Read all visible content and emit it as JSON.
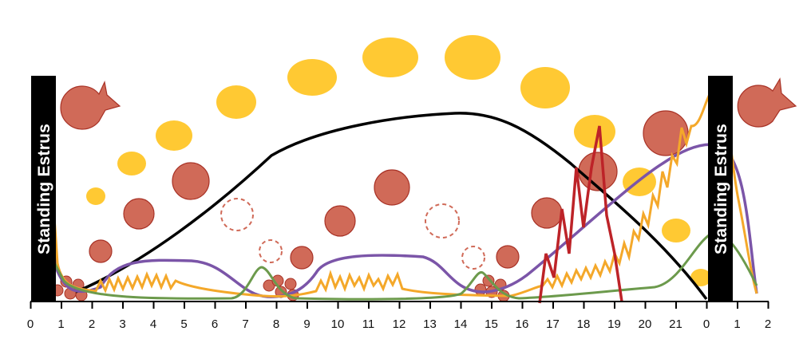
{
  "band_label": "Standing Estrus",
  "axis": {
    "day_labels": [
      "0",
      "1",
      "2",
      "3",
      "4",
      "5",
      "6",
      "7",
      "8",
      "9",
      "10",
      "11",
      "12",
      "13",
      "14",
      "15",
      "16",
      "17",
      "18",
      "19",
      "20",
      "21",
      "0",
      "1",
      "2"
    ]
  },
  "colors": {
    "corpus_luteum": "#FFC933",
    "follicle": "#D06A58",
    "follicle_stroke": "#A83226",
    "progesterone_line": "#000000",
    "estrogen_line": "#7B55A8",
    "lh_fsh_line": "#F4A82A",
    "green_line": "#6C9A4C",
    "surge_line": "#BD2328",
    "band_fill": "#000000",
    "band_text": "#FFFFFF"
  }
}
